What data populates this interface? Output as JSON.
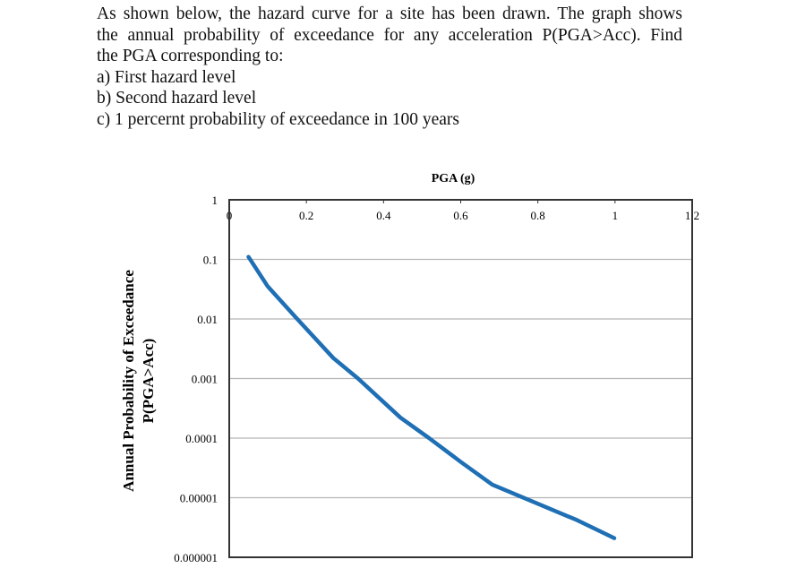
{
  "question": {
    "lines": [
      "As shown below, the hazard curve for a site has been drawn. The graph shows",
      "the annual probability of exceedance for any acceleration P(PGA>Acc). Find",
      "the PGA corresponding to:",
      "a) First hazard level",
      "b) Second hazard level",
      "c) 1 percernt probability of exceedance in 100 years"
    ]
  },
  "chart_data": {
    "type": "line",
    "title": "",
    "xlabel": "PGA (g)",
    "ylabel": [
      "Annual Probability of Exceedance",
      "P(PGA>Acc)"
    ],
    "xlim": [
      0,
      1.2
    ],
    "ylim": [
      1e-06,
      1
    ],
    "yscale": "log",
    "x_axis_position": "top",
    "x_ticks": [
      "0",
      "0.2",
      "0.4",
      "0.6",
      "0.8",
      "1",
      "1.2"
    ],
    "y_ticks": [
      "1",
      "0.1",
      "0.01",
      "0.001",
      "0.0001",
      "0.00001",
      "0.000001"
    ],
    "grid": "horizontal",
    "line_color": "#1f6fb5",
    "series": [
      {
        "x": [
          0.05,
          0.1,
          0.172,
          0.27,
          0.334,
          0.444,
          0.518,
          0.6,
          0.682,
          0.774,
          0.902,
          0.998
        ],
        "y": [
          0.11,
          0.035,
          0.0107,
          0.0022,
          0.001,
          0.00022,
          0.0001,
          4e-05,
          1.66e-05,
          9.3e-06,
          4.2e-06,
          2.1e-06
        ]
      }
    ]
  }
}
